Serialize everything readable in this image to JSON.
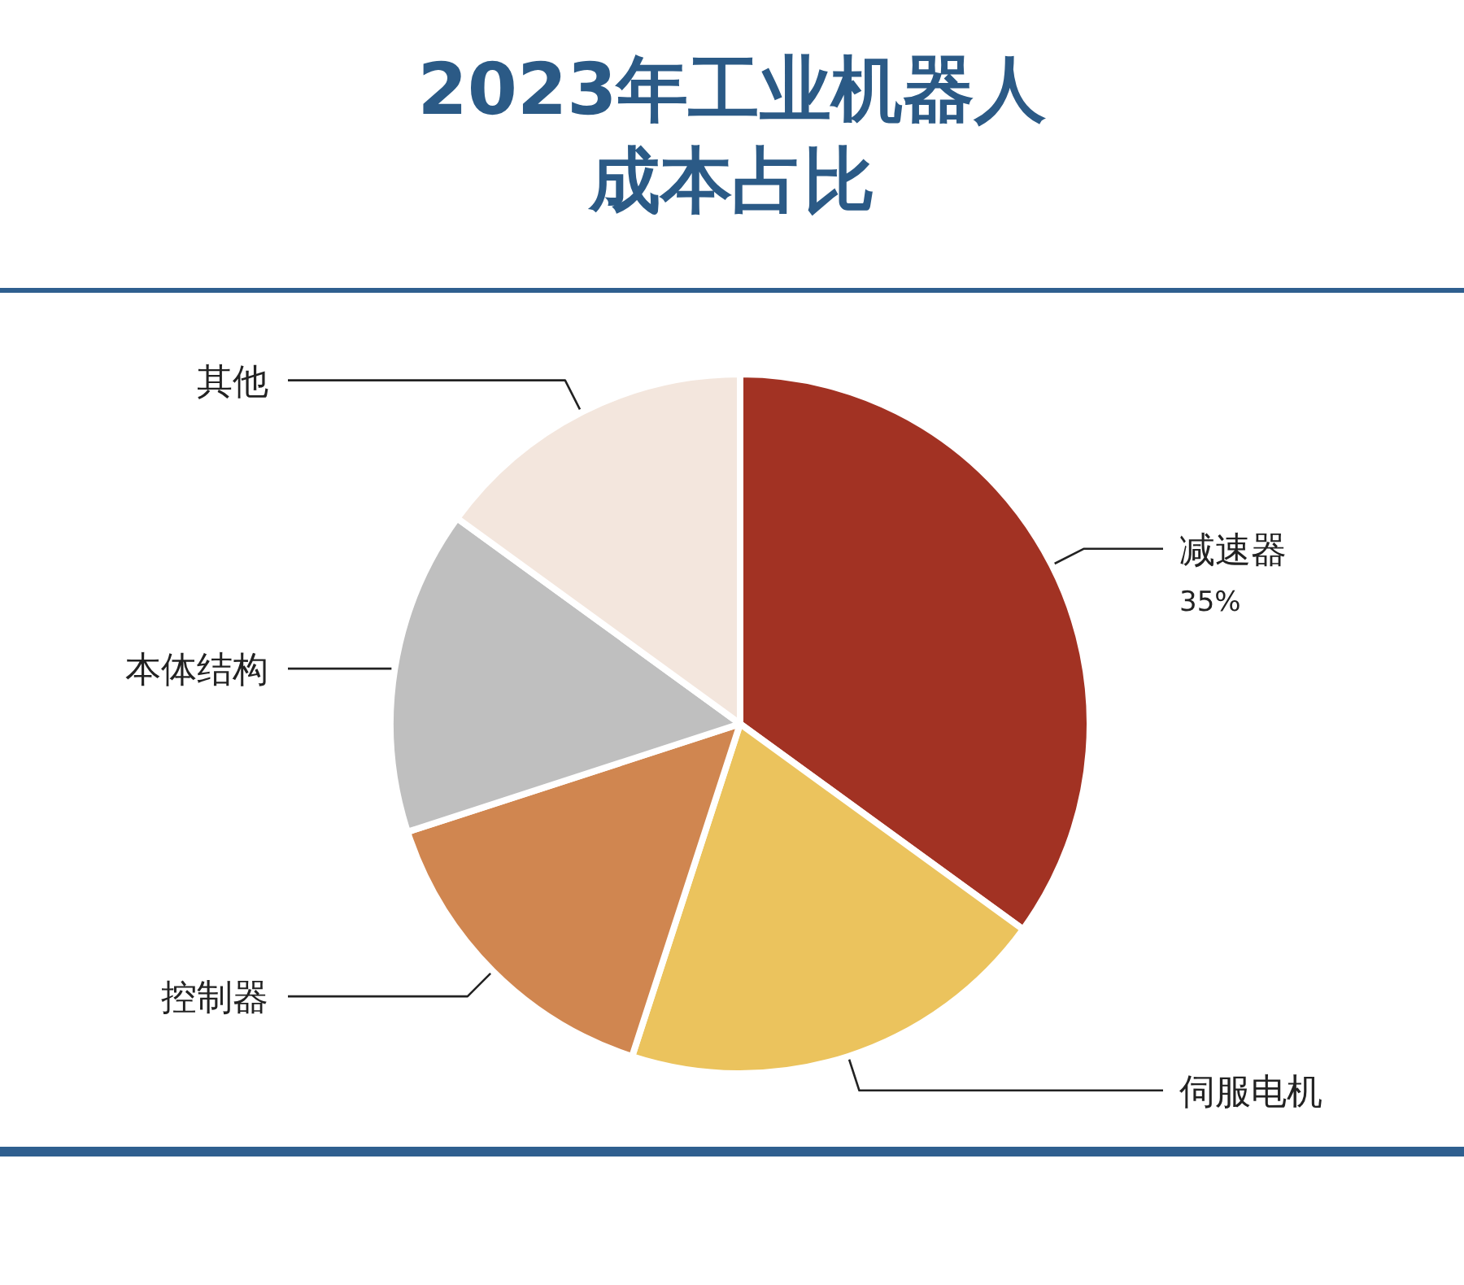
{
  "chart_data": {
    "type": "pie",
    "title": "2023年工业机器人成本占比",
    "categories": [
      "减速器",
      "伺服电机",
      "控制器",
      "本体结构",
      "其他"
    ],
    "values": [
      35,
      20,
      15,
      15,
      15
    ],
    "colors": [
      "#a23223",
      "#ebc35d",
      "#d08650",
      "#bfbfbf",
      "#f3e6dd"
    ],
    "value_labels": [
      "35%",
      null,
      null,
      null,
      null
    ]
  }
}
